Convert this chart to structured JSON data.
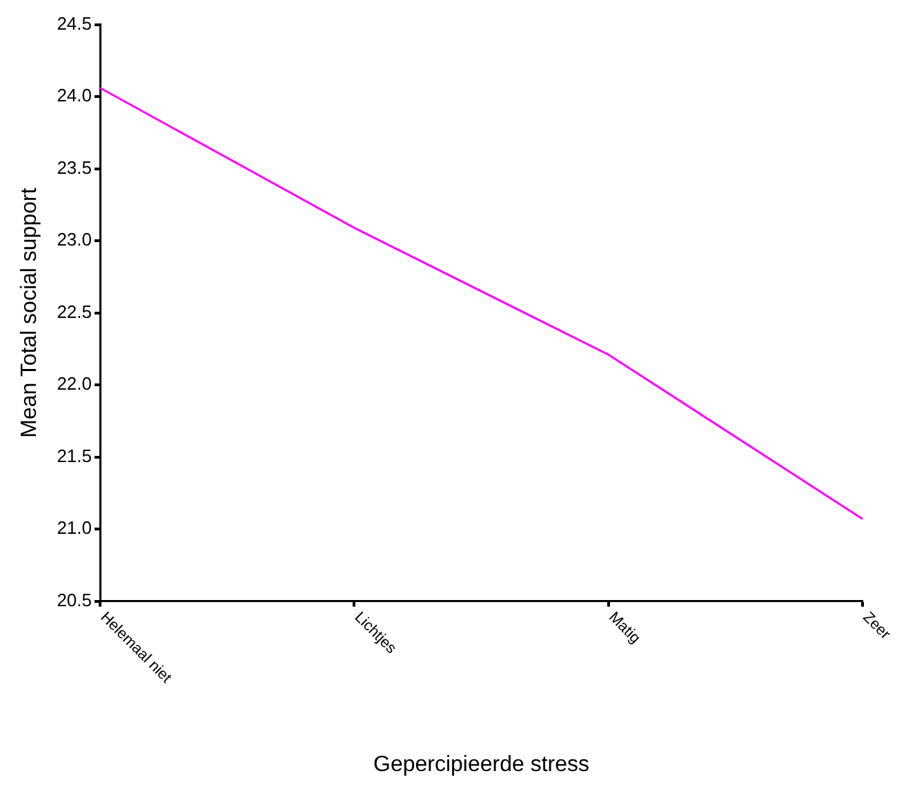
{
  "chart_data": {
    "type": "line",
    "xlabel": "Gepercipieerde stress",
    "ylabel": "Mean Total social support",
    "categories": [
      "Helemaal niet",
      "Lichtjes",
      "Matig",
      "Zeer"
    ],
    "series": [
      {
        "color": "#ff00ff",
        "values": [
          24.06,
          23.09,
          22.21,
          21.07
        ]
      }
    ],
    "ylim": [
      20.5,
      24.5
    ],
    "yticks": [
      {
        "value": 20.5,
        "label": "20.5"
      },
      {
        "value": 21,
        "label": "21.0"
      },
      {
        "value": 21.5,
        "label": "21.5"
      },
      {
        "value": 22,
        "label": "22.0"
      },
      {
        "value": 22.5,
        "label": "22.5"
      },
      {
        "value": 23,
        "label": "23.0"
      },
      {
        "value": 23.5,
        "label": "23.5"
      },
      {
        "value": 24,
        "label": "24.0"
      },
      {
        "value": 24.5,
        "label": "24.5"
      }
    ],
    "grid": false,
    "legend": false,
    "marker": "none",
    "line_style": "solid"
  }
}
